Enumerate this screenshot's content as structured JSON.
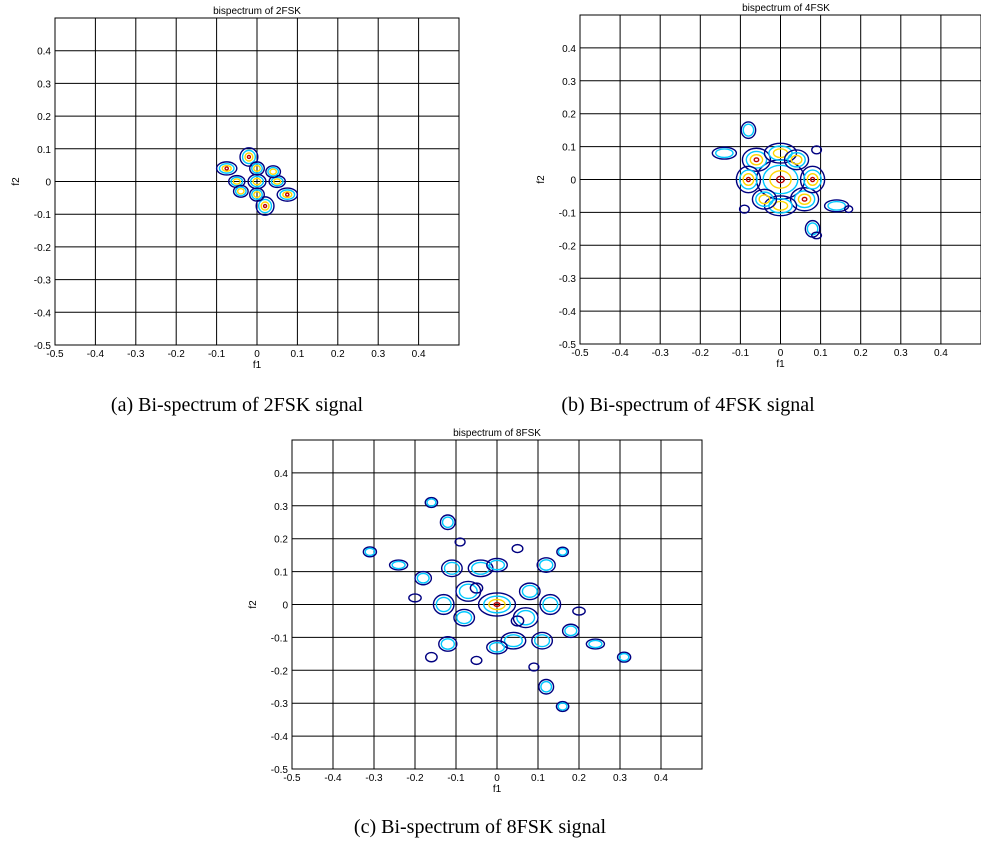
{
  "chart_data": [
    {
      "type": "contour",
      "title": "bispectrum of 2FSK",
      "caption": "(a) Bi-spectrum of 2FSK signal",
      "xlabel": "f1",
      "ylabel": "f2",
      "xlim": [
        -0.5,
        0.5
      ],
      "ylim": [
        -0.5,
        0.5
      ],
      "xticks": [
        -0.5,
        -0.4,
        -0.3,
        -0.2,
        -0.1,
        0,
        0.1,
        0.2,
        0.3,
        0.4
      ],
      "yticks": [
        -0.5,
        -0.4,
        -0.3,
        -0.2,
        -0.1,
        0,
        0.1,
        0.2,
        0.3,
        0.4
      ],
      "grid": true,
      "level_colors": [
        "#000080",
        "#00c8ff",
        "#ffd700",
        "#c00000"
      ],
      "peaks": [
        {
          "x": 0.0,
          "y": 0.0,
          "rx": 0.022,
          "ry": 0.022,
          "levels": 3
        },
        {
          "x": -0.02,
          "y": 0.075,
          "rx": 0.022,
          "ry": 0.028,
          "levels": 4
        },
        {
          "x": 0.02,
          "y": -0.075,
          "rx": 0.022,
          "ry": 0.028,
          "levels": 4
        },
        {
          "x": -0.075,
          "y": 0.04,
          "rx": 0.025,
          "ry": 0.02,
          "levels": 4
        },
        {
          "x": 0.075,
          "y": -0.04,
          "rx": 0.025,
          "ry": 0.02,
          "levels": 4
        },
        {
          "x": -0.05,
          "y": 0.0,
          "rx": 0.02,
          "ry": 0.018,
          "levels": 3
        },
        {
          "x": 0.05,
          "y": 0.0,
          "rx": 0.02,
          "ry": 0.018,
          "levels": 3
        },
        {
          "x": 0.0,
          "y": 0.04,
          "rx": 0.018,
          "ry": 0.02,
          "levels": 3
        },
        {
          "x": 0.0,
          "y": -0.04,
          "rx": 0.018,
          "ry": 0.02,
          "levels": 3
        },
        {
          "x": -0.04,
          "y": -0.03,
          "rx": 0.018,
          "ry": 0.018,
          "levels": 3
        },
        {
          "x": 0.04,
          "y": 0.03,
          "rx": 0.018,
          "ry": 0.018,
          "levels": 3
        }
      ]
    },
    {
      "type": "contour",
      "title": "bispectrum of 4FSK",
      "caption": "(b) Bi-spectrum of 4FSK signal",
      "xlabel": "f1",
      "ylabel": "f2",
      "xlim": [
        -0.5,
        0.5
      ],
      "ylim": [
        -0.5,
        0.5
      ],
      "xticks": [
        -0.5,
        -0.4,
        -0.3,
        -0.2,
        -0.1,
        0,
        0.1,
        0.2,
        0.3,
        0.4
      ],
      "yticks": [
        -0.5,
        -0.4,
        -0.3,
        -0.2,
        -0.1,
        0,
        0.1,
        0.2,
        0.3,
        0.4
      ],
      "grid": true,
      "level_colors": [
        "#000080",
        "#00c8ff",
        "#ffd700",
        "#c00000"
      ],
      "peaks": [
        {
          "x": 0.0,
          "y": 0.0,
          "rx": 0.06,
          "ry": 0.06,
          "levels": 4
        },
        {
          "x": -0.06,
          "y": 0.06,
          "rx": 0.035,
          "ry": 0.035,
          "levels": 4
        },
        {
          "x": 0.06,
          "y": -0.06,
          "rx": 0.035,
          "ry": 0.035,
          "levels": 4
        },
        {
          "x": -0.08,
          "y": 0.0,
          "rx": 0.03,
          "ry": 0.04,
          "levels": 4
        },
        {
          "x": 0.08,
          "y": 0.0,
          "rx": 0.03,
          "ry": 0.04,
          "levels": 4
        },
        {
          "x": 0.0,
          "y": 0.08,
          "rx": 0.04,
          "ry": 0.03,
          "levels": 3
        },
        {
          "x": 0.0,
          "y": -0.08,
          "rx": 0.04,
          "ry": 0.03,
          "levels": 3
        },
        {
          "x": -0.04,
          "y": -0.06,
          "rx": 0.03,
          "ry": 0.03,
          "levels": 3
        },
        {
          "x": 0.04,
          "y": 0.06,
          "rx": 0.03,
          "ry": 0.03,
          "levels": 3
        },
        {
          "x": -0.14,
          "y": 0.08,
          "rx": 0.03,
          "ry": 0.018,
          "levels": 2
        },
        {
          "x": 0.14,
          "y": -0.08,
          "rx": 0.03,
          "ry": 0.018,
          "levels": 2
        },
        {
          "x": -0.08,
          "y": 0.15,
          "rx": 0.018,
          "ry": 0.025,
          "levels": 2
        },
        {
          "x": 0.08,
          "y": -0.15,
          "rx": 0.018,
          "ry": 0.025,
          "levels": 2
        },
        {
          "x": 0.09,
          "y": 0.09,
          "rx": 0.012,
          "ry": 0.012,
          "levels": 1
        },
        {
          "x": -0.09,
          "y": -0.09,
          "rx": 0.012,
          "ry": 0.012,
          "levels": 1
        },
        {
          "x": 0.09,
          "y": -0.17,
          "rx": 0.012,
          "ry": 0.01,
          "levels": 1
        },
        {
          "x": 0.17,
          "y": -0.09,
          "rx": 0.01,
          "ry": 0.01,
          "levels": 1
        }
      ]
    },
    {
      "type": "contour",
      "title": "bispectrum of 8FSK",
      "caption": "(c) Bi-spectrum of 8FSK signal",
      "xlabel": "f1",
      "ylabel": "f2",
      "xlim": [
        -0.5,
        0.5
      ],
      "ylim": [
        -0.5,
        0.5
      ],
      "xticks": [
        -0.5,
        -0.4,
        -0.3,
        -0.2,
        -0.1,
        0,
        0.1,
        0.2,
        0.3,
        0.4
      ],
      "yticks": [
        -0.5,
        -0.4,
        -0.3,
        -0.2,
        -0.1,
        0,
        0.1,
        0.2,
        0.3,
        0.4
      ],
      "grid": true,
      "level_colors": [
        "#000080",
        "#00c8ff",
        "#ffd700",
        "#c00000"
      ],
      "peaks": [
        {
          "x": 0.0,
          "y": 0.0,
          "rx": 0.045,
          "ry": 0.035,
          "levels": 4
        },
        {
          "x": -0.07,
          "y": 0.04,
          "rx": 0.03,
          "ry": 0.03,
          "levels": 2
        },
        {
          "x": 0.07,
          "y": -0.04,
          "rx": 0.03,
          "ry": 0.03,
          "levels": 2
        },
        {
          "x": -0.08,
          "y": -0.04,
          "rx": 0.025,
          "ry": 0.025,
          "levels": 2
        },
        {
          "x": 0.08,
          "y": 0.04,
          "rx": 0.025,
          "ry": 0.025,
          "levels": 2
        },
        {
          "x": -0.04,
          "y": 0.11,
          "rx": 0.03,
          "ry": 0.025,
          "levels": 2
        },
        {
          "x": 0.04,
          "y": -0.11,
          "rx": 0.03,
          "ry": 0.025,
          "levels": 2
        },
        {
          "x": -0.11,
          "y": 0.11,
          "rx": 0.025,
          "ry": 0.025,
          "levels": 2
        },
        {
          "x": 0.11,
          "y": -0.11,
          "rx": 0.025,
          "ry": 0.025,
          "levels": 2
        },
        {
          "x": -0.13,
          "y": 0.0,
          "rx": 0.025,
          "ry": 0.03,
          "levels": 2
        },
        {
          "x": 0.13,
          "y": 0.0,
          "rx": 0.025,
          "ry": 0.03,
          "levels": 2
        },
        {
          "x": -0.12,
          "y": -0.12,
          "rx": 0.022,
          "ry": 0.022,
          "levels": 2
        },
        {
          "x": 0.12,
          "y": 0.12,
          "rx": 0.022,
          "ry": 0.022,
          "levels": 2
        },
        {
          "x": 0.0,
          "y": 0.12,
          "rx": 0.025,
          "ry": 0.02,
          "levels": 2
        },
        {
          "x": 0.0,
          "y": -0.13,
          "rx": 0.025,
          "ry": 0.02,
          "levels": 2
        },
        {
          "x": -0.18,
          "y": 0.08,
          "rx": 0.02,
          "ry": 0.02,
          "levels": 2
        },
        {
          "x": 0.18,
          "y": -0.08,
          "rx": 0.02,
          "ry": 0.02,
          "levels": 2
        },
        {
          "x": -0.12,
          "y": 0.25,
          "rx": 0.018,
          "ry": 0.022,
          "levels": 2
        },
        {
          "x": 0.12,
          "y": -0.25,
          "rx": 0.018,
          "ry": 0.022,
          "levels": 2
        },
        {
          "x": -0.16,
          "y": 0.31,
          "rx": 0.015,
          "ry": 0.015,
          "levels": 2
        },
        {
          "x": 0.16,
          "y": -0.31,
          "rx": 0.015,
          "ry": 0.015,
          "levels": 2
        },
        {
          "x": -0.24,
          "y": 0.12,
          "rx": 0.022,
          "ry": 0.015,
          "levels": 2
        },
        {
          "x": 0.24,
          "y": -0.12,
          "rx": 0.022,
          "ry": 0.015,
          "levels": 2
        },
        {
          "x": -0.31,
          "y": 0.16,
          "rx": 0.016,
          "ry": 0.015,
          "levels": 2
        },
        {
          "x": 0.31,
          "y": -0.16,
          "rx": 0.016,
          "ry": 0.015,
          "levels": 2
        },
        {
          "x": -0.16,
          "y": -0.16,
          "rx": 0.014,
          "ry": 0.014,
          "levels": 1
        },
        {
          "x": 0.16,
          "y": 0.16,
          "rx": 0.014,
          "ry": 0.014,
          "levels": 2
        },
        {
          "x": -0.05,
          "y": 0.05,
          "rx": 0.015,
          "ry": 0.015,
          "levels": 1
        },
        {
          "x": 0.05,
          "y": -0.05,
          "rx": 0.015,
          "ry": 0.015,
          "levels": 1
        },
        {
          "x": -0.2,
          "y": 0.02,
          "rx": 0.015,
          "ry": 0.012,
          "levels": 1
        },
        {
          "x": 0.2,
          "y": -0.02,
          "rx": 0.015,
          "ry": 0.012,
          "levels": 1
        },
        {
          "x": -0.05,
          "y": -0.17,
          "rx": 0.013,
          "ry": 0.012,
          "levels": 1
        },
        {
          "x": 0.05,
          "y": 0.17,
          "rx": 0.013,
          "ry": 0.012,
          "levels": 1
        },
        {
          "x": -0.09,
          "y": 0.19,
          "rx": 0.012,
          "ry": 0.012,
          "levels": 1
        },
        {
          "x": 0.09,
          "y": -0.19,
          "rx": 0.012,
          "ry": 0.012,
          "levels": 1
        }
      ]
    }
  ]
}
